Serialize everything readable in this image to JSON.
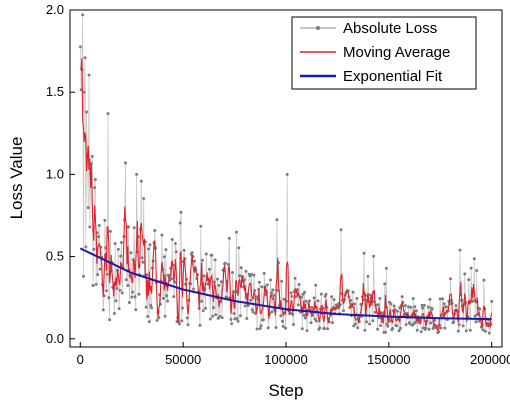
{
  "chart_data": {
    "type": "line",
    "xlabel": "Step",
    "ylabel": "Loss Value",
    "xlim": [
      -5000,
      205000
    ],
    "ylim": [
      -0.05,
      2.0
    ],
    "xticks": [
      0,
      50000,
      100000,
      150000,
      200000
    ],
    "yticks": [
      0.0,
      0.5,
      1.0,
      1.5,
      2.0
    ],
    "xtick_labels": [
      "0",
      "50000",
      "100000",
      "150000",
      "200000"
    ],
    "ytick_labels": [
      "0.0",
      "0.5",
      "1.0",
      "1.5",
      "2.0"
    ],
    "grid": false,
    "legend_position": "top-right",
    "series": [
      {
        "name": "Absolute Loss",
        "color": "#8a8a8a",
        "style": "thin line with dot markers",
        "peaks": [
          {
            "x": 1000,
            "y": 1.97
          },
          {
            "x": 2000,
            "y": 1.5
          },
          {
            "x": 3500,
            "y": 1.12
          },
          {
            "x": 13500,
            "y": 1.37
          },
          {
            "x": 22000,
            "y": 1.07
          },
          {
            "x": 27500,
            "y": 1.0
          },
          {
            "x": 49000,
            "y": 0.77
          },
          {
            "x": 100500,
            "y": 1.0
          },
          {
            "x": 138000,
            "y": 0.52
          },
          {
            "x": 190000,
            "y": 0.43
          }
        ]
      },
      {
        "name": "Moving Average",
        "color": "#e0202a",
        "trend": [
          {
            "x": 0,
            "y": 1.55
          },
          {
            "x": 2000,
            "y": 0.9
          },
          {
            "x": 10000,
            "y": 0.48
          },
          {
            "x": 25000,
            "y": 0.42
          },
          {
            "x": 50000,
            "y": 0.33
          },
          {
            "x": 75000,
            "y": 0.26
          },
          {
            "x": 100000,
            "y": 0.21
          },
          {
            "x": 150000,
            "y": 0.15
          },
          {
            "x": 200000,
            "y": 0.13
          }
        ]
      },
      {
        "name": "Exponential Fit",
        "color": "#1a1aaa",
        "x": [
          0,
          25000,
          50000,
          75000,
          100000,
          125000,
          150000,
          175000,
          200000
        ],
        "values": [
          0.55,
          0.4,
          0.3,
          0.23,
          0.18,
          0.15,
          0.135,
          0.125,
          0.12
        ]
      }
    ]
  }
}
